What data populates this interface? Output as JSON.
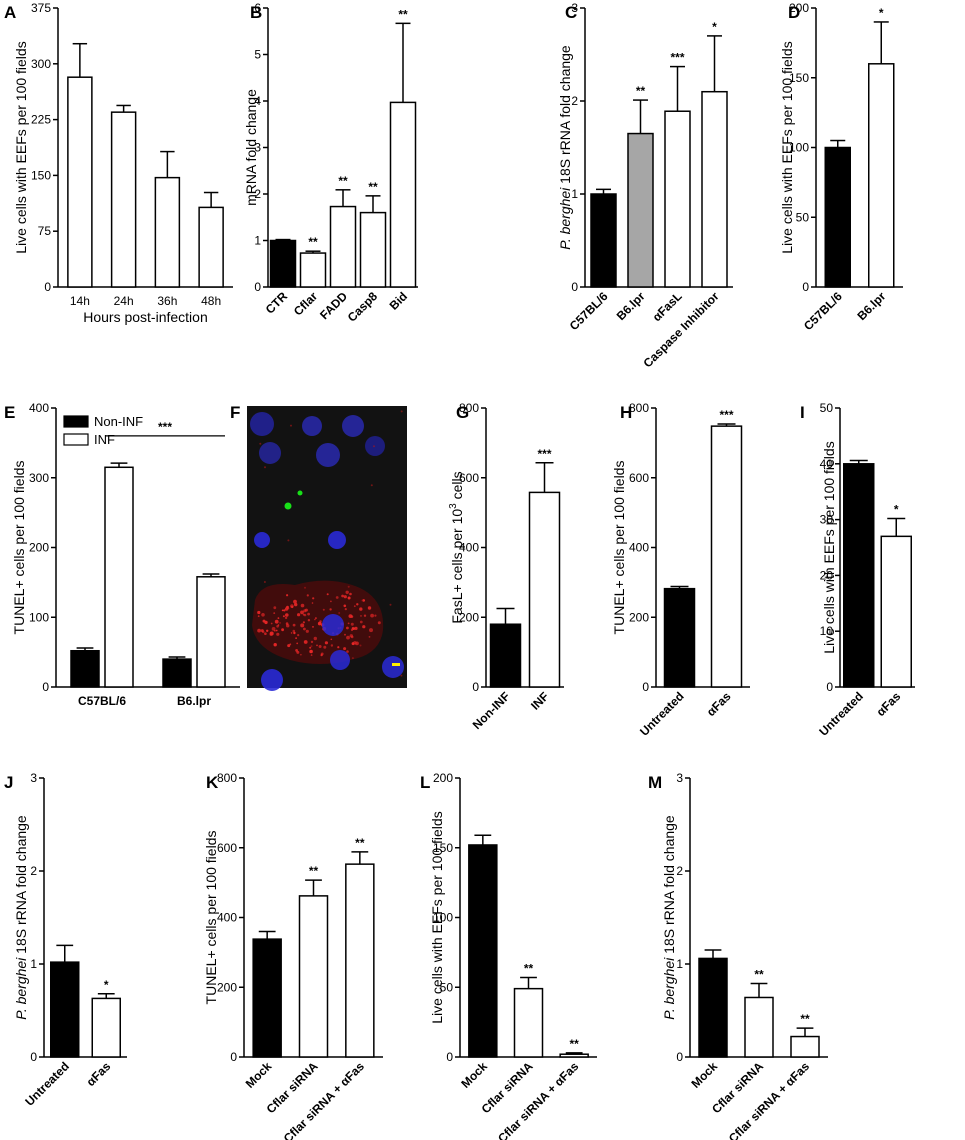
{
  "colors": {
    "black_bar": "#000000",
    "white_bar": "#ffffff",
    "grey_bar": "#a6a6a6",
    "micro_bg": "#121212"
  },
  "micrograph": {
    "label": "F",
    "description_icon": "fluorescence-microscopy-image",
    "colors": {
      "nucleus": "#2a2ad6",
      "tunel": "#18e018",
      "fasl": "#c82020",
      "scale_bar": "#ffee00"
    }
  },
  "chart_data": [
    {
      "id": "A",
      "type": "bar",
      "label": "A",
      "ylabel": "Live cells with EEFs per 100 fields",
      "xlabel": "Hours post-infection",
      "ylim": [
        0,
        375
      ],
      "yticks": [
        0,
        75,
        150,
        225,
        300,
        375
      ],
      "categories": [
        "14h",
        "24h",
        "36h",
        "48h"
      ],
      "values": [
        282,
        235,
        147,
        107
      ],
      "errors": [
        45,
        9,
        35,
        20
      ],
      "colors": [
        "white",
        "white",
        "white",
        "white"
      ],
      "sig": [
        "",
        "",
        "",
        ""
      ],
      "rotate": false
    },
    {
      "id": "B",
      "type": "bar",
      "label": "B",
      "ylabel": "mRNA fold change",
      "xlabel": "",
      "ylim": [
        0,
        6
      ],
      "yticks": [
        0,
        1,
        2,
        3,
        4,
        5,
        6
      ],
      "categories": [
        "CTR",
        "Cflar",
        "FADD",
        "Casp8",
        "Bid"
      ],
      "values": [
        1.0,
        0.73,
        1.73,
        1.6,
        3.97
      ],
      "errors": [
        0.02,
        0.04,
        0.36,
        0.36,
        1.7
      ],
      "colors": [
        "black",
        "white",
        "white",
        "white",
        "white"
      ],
      "sig": [
        "",
        "**",
        "**",
        "**",
        "**"
      ],
      "rotate": true
    },
    {
      "id": "C",
      "type": "bar",
      "label": "C",
      "ylabel": "P. berghei 18S rRNA fold change",
      "ylabel_italic": "P. berghei",
      "ylabel_rest": " 18S rRNA fold change",
      "xlabel": "",
      "ylim": [
        0,
        3
      ],
      "yticks": [
        0,
        1,
        2,
        3
      ],
      "categories": [
        "C57BL/6",
        "B6.lpr",
        "αFasL",
        "Caspase Inhibitor"
      ],
      "values": [
        1.0,
        1.65,
        1.89,
        2.1
      ],
      "errors": [
        0.05,
        0.36,
        0.48,
        0.6
      ],
      "colors": [
        "black",
        "grey",
        "white",
        "white"
      ],
      "sig": [
        "",
        "**",
        "***",
        "*"
      ],
      "rotate": true
    },
    {
      "id": "D",
      "type": "bar",
      "label": "D",
      "ylabel": "Live cells with EEFs per 100 fields",
      "xlabel": "",
      "ylim": [
        0,
        200
      ],
      "yticks": [
        0,
        50,
        100,
        150,
        200
      ],
      "categories": [
        "C57BL/6",
        "B6.lpr"
      ],
      "values": [
        100,
        160
      ],
      "errors": [
        5,
        30
      ],
      "colors": [
        "black",
        "white"
      ],
      "sig": [
        "",
        "*"
      ],
      "rotate": true
    },
    {
      "id": "E",
      "type": "bar",
      "label": "E",
      "ylabel": "TUNEL+ cells per 100 fields",
      "xlabel": "",
      "ylim": [
        0,
        400
      ],
      "yticks": [
        0,
        100,
        200,
        300,
        400
      ],
      "categories": [
        "C57BL/6",
        "B6.lpr"
      ],
      "series": [
        {
          "name": "Non-INF",
          "values": [
            52,
            40
          ],
          "errors": [
            4,
            3
          ],
          "color": "black"
        },
        {
          "name": "INF",
          "values": [
            315,
            158
          ],
          "errors": [
            6,
            4
          ],
          "color": "white"
        }
      ],
      "legend": "top-left",
      "bracket": {
        "text": "***",
        "value": 360
      },
      "rotate": false
    },
    {
      "id": "G",
      "type": "bar",
      "label": "G",
      "ylabel": "FasL+ cells per 10 3 cells",
      "ylabel_pre": "FasL+ cells per 10",
      "ylabel_sup": "3",
      "ylabel_post": " cells",
      "xlabel": "",
      "ylim": [
        0,
        800
      ],
      "yticks": [
        0,
        200,
        400,
        600,
        800
      ],
      "categories": [
        "Non-INF",
        "INF"
      ],
      "values": [
        180,
        558
      ],
      "errors": [
        45,
        85
      ],
      "colors": [
        "black",
        "white"
      ],
      "sig": [
        "",
        "***"
      ],
      "rotate": true
    },
    {
      "id": "H",
      "type": "bar",
      "label": "H",
      "ylabel": "TUNEL+ cells per 100 fields",
      "xlabel": "",
      "ylim": [
        0,
        800
      ],
      "yticks": [
        0,
        200,
        400,
        600,
        800
      ],
      "categories": [
        "Untreated",
        "αFas"
      ],
      "values": [
        282,
        748
      ],
      "errors": [
        6,
        6
      ],
      "colors": [
        "black",
        "white"
      ],
      "sig": [
        "",
        "***"
      ],
      "rotate": true
    },
    {
      "id": "I",
      "type": "bar",
      "label": "I",
      "ylabel": "Live cells with EEFs per 100 fields",
      "xlabel": "",
      "ylim": [
        0,
        50
      ],
      "yticks": [
        0,
        10,
        20,
        30,
        40,
        50
      ],
      "categories": [
        "Untreated",
        "αFas"
      ],
      "values": [
        40,
        27
      ],
      "errors": [
        0.6,
        3.2
      ],
      "colors": [
        "black",
        "white"
      ],
      "sig": [
        "",
        "*"
      ],
      "rotate": true
    },
    {
      "id": "J",
      "type": "bar",
      "label": "J",
      "ylabel": "P. berghei 18S rRNA fold change",
      "ylabel_italic": "P. berghei",
      "ylabel_rest": " 18S rRNA fold change",
      "xlabel": "",
      "ylim": [
        0,
        3
      ],
      "yticks": [
        0,
        1,
        2,
        3
      ],
      "categories": [
        "Untreated",
        "αFas"
      ],
      "values": [
        1.02,
        0.63
      ],
      "errors": [
        0.18,
        0.05
      ],
      "colors": [
        "black",
        "white"
      ],
      "sig": [
        "",
        "*"
      ],
      "rotate": true
    },
    {
      "id": "K",
      "type": "bar",
      "label": "K",
      "ylabel": "TUNEL+ cells per 100 fields",
      "xlabel": "",
      "ylim": [
        0,
        800
      ],
      "yticks": [
        0,
        200,
        400,
        600,
        800
      ],
      "categories": [
        "Mock",
        "Cflar siRNA",
        "Cflar siRNA + αFas"
      ],
      "values": [
        338,
        462,
        553
      ],
      "errors": [
        22,
        45,
        35
      ],
      "colors": [
        "black",
        "white",
        "white"
      ],
      "sig": [
        "",
        "**",
        "**"
      ],
      "rotate": true
    },
    {
      "id": "L",
      "type": "bar",
      "label": "L",
      "ylabel": "Live cells with EEFs per 100 fields",
      "xlabel": "",
      "ylim": [
        0,
        200
      ],
      "yticks": [
        0,
        50,
        100,
        150,
        200
      ],
      "categories": [
        "Mock",
        "Cflar siRNA",
        "Cflar siRNA + αFas"
      ],
      "values": [
        152,
        49,
        2
      ],
      "errors": [
        7,
        8,
        1
      ],
      "colors": [
        "black",
        "white",
        "white"
      ],
      "sig": [
        "",
        "**",
        "**"
      ],
      "rotate": true
    },
    {
      "id": "M",
      "type": "bar",
      "label": "M",
      "ylabel": "P. berghei 18S rRNA fold change",
      "ylabel_italic": "P. berghei",
      "ylabel_rest": " 18S rRNA fold change",
      "xlabel": "",
      "ylim": [
        0,
        3
      ],
      "yticks": [
        0,
        1,
        2,
        3
      ],
      "categories": [
        "Mock",
        "Cflar siRNA",
        "Cflar siRNA + αFas"
      ],
      "values": [
        1.06,
        0.64,
        0.22
      ],
      "errors": [
        0.09,
        0.15,
        0.09
      ],
      "colors": [
        "black",
        "white",
        "white"
      ],
      "sig": [
        "",
        "**",
        "**"
      ],
      "rotate": true
    }
  ]
}
